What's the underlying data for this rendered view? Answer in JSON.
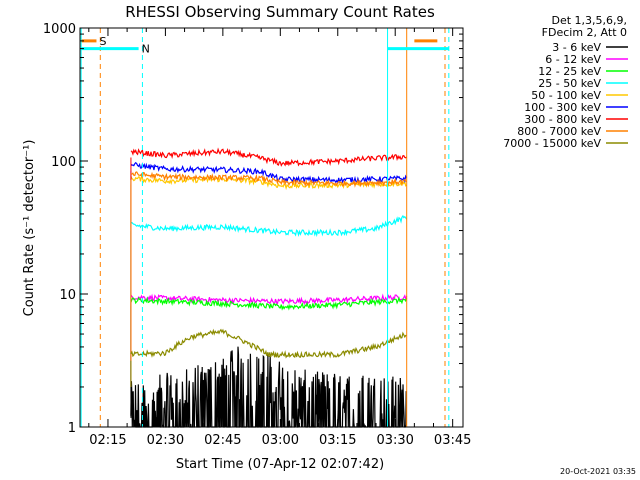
{
  "chart_data": {
    "type": "line",
    "title": "RHESSI Observing Summary Count Rates",
    "xlabel": "Start Time (07-Apr-12 02:07:42)",
    "ylabel": "Count Rate (s⁻¹ detector⁻¹)",
    "ylog": true,
    "ylim": [
      1,
      1000
    ],
    "xlim": [
      "02:07:42",
      "03:47:42"
    ],
    "x_tick_labels": [
      "02:15",
      "02:30",
      "02:45",
      "03:00",
      "03:15",
      "03:30",
      "03:45"
    ],
    "y_tick_labels": [
      "1",
      "10",
      "100",
      "1000"
    ],
    "legend_header": [
      "Det 1,3,5,6,9,",
      "FDecim 2, Att 0"
    ],
    "legend_position": "right, outside plot",
    "data_start": "02:21:00",
    "data_end": "03:33:00",
    "series": [
      {
        "name": "3 - 6 keV",
        "color": "#000000",
        "noisy": true,
        "points": [
          [
            "02:21",
            1.3
          ],
          [
            "02:35",
            1.6
          ],
          [
            "02:45",
            2.0
          ],
          [
            "02:50",
            2.5
          ],
          [
            "02:55",
            2.2
          ],
          [
            "03:05",
            1.6
          ],
          [
            "03:20",
            1.5
          ],
          [
            "03:33",
            1.4
          ]
        ]
      },
      {
        "name": "6 - 12 keV",
        "color": "#ff00ff",
        "points": [
          [
            "02:21",
            9.5
          ],
          [
            "02:45",
            9.0
          ],
          [
            "03:00",
            8.8
          ],
          [
            "03:15",
            9.0
          ],
          [
            "03:33",
            9.5
          ]
        ]
      },
      {
        "name": "12 - 25 keV",
        "color": "#00ff00",
        "points": [
          [
            "02:21",
            9.0
          ],
          [
            "02:45",
            8.5
          ],
          [
            "03:00",
            8.0
          ],
          [
            "03:15",
            8.3
          ],
          [
            "03:33",
            9.0
          ]
        ]
      },
      {
        "name": "25 - 50 keV",
        "color": "#00ffff",
        "points": [
          [
            "02:21",
            33
          ],
          [
            "02:30",
            31
          ],
          [
            "02:45",
            32
          ],
          [
            "02:55",
            30
          ],
          [
            "03:00",
            29
          ],
          [
            "03:15",
            29
          ],
          [
            "03:25",
            31
          ],
          [
            "03:33",
            38
          ]
        ]
      },
      {
        "name": "50 - 100 keV",
        "color": "#ffc800",
        "points": [
          [
            "02:21",
            74
          ],
          [
            "02:30",
            71
          ],
          [
            "02:45",
            73
          ],
          [
            "02:55",
            70
          ],
          [
            "03:00",
            65
          ],
          [
            "03:15",
            66
          ],
          [
            "03:25",
            67
          ],
          [
            "03:33",
            68
          ]
        ]
      },
      {
        "name": "100 - 300 keV",
        "color": "#0000ff",
        "points": [
          [
            "02:21",
            94
          ],
          [
            "02:30",
            87
          ],
          [
            "02:45",
            86
          ],
          [
            "02:55",
            83
          ],
          [
            "03:00",
            73
          ],
          [
            "03:15",
            72
          ],
          [
            "03:25",
            73
          ],
          [
            "03:33",
            74
          ]
        ]
      },
      {
        "name": "300 - 800 keV",
        "color": "#ff0000",
        "points": [
          [
            "02:21",
            118
          ],
          [
            "02:30",
            110
          ],
          [
            "02:45",
            118
          ],
          [
            "02:55",
            105
          ],
          [
            "03:00",
            96
          ],
          [
            "03:15",
            100
          ],
          [
            "03:25",
            105
          ],
          [
            "03:33",
            108
          ]
        ]
      },
      {
        "name": "800 - 7000 keV",
        "color": "#ff8000",
        "points": [
          [
            "02:21",
            80
          ],
          [
            "02:30",
            76
          ],
          [
            "02:45",
            75
          ],
          [
            "02:55",
            74
          ],
          [
            "03:00",
            69
          ],
          [
            "03:15",
            68
          ],
          [
            "03:25",
            69
          ],
          [
            "03:33",
            70
          ]
        ]
      },
      {
        "name": "7000 - 15000 keV",
        "color": "#8b8b00",
        "points": [
          [
            "02:21",
            3.5
          ],
          [
            "02:30",
            3.6
          ],
          [
            "02:37",
            4.8
          ],
          [
            "02:45",
            5.2
          ],
          [
            "02:52",
            4.2
          ],
          [
            "02:57",
            3.5
          ],
          [
            "03:15",
            3.5
          ],
          [
            "03:25",
            4.0
          ],
          [
            "03:33",
            5.0
          ]
        ]
      }
    ],
    "flags": [
      {
        "label": "S",
        "color": "#ff8000",
        "bars": [
          [
            "02:08",
            "02:12"
          ],
          [
            "03:35",
            "03:41"
          ]
        ],
        "level": 800,
        "markers": [
          {
            "time": "02:13",
            "style": "dashed"
          },
          {
            "time": "03:33",
            "style": "solid"
          },
          {
            "time": "03:43",
            "style": "dashed"
          }
        ]
      },
      {
        "label": "N",
        "color": "#00ffff",
        "bars": [
          [
            "02:08",
            "02:23"
          ],
          [
            "03:28",
            "03:44"
          ]
        ],
        "level": 700,
        "markers": [
          {
            "time": "02:08",
            "style": "solid"
          },
          {
            "time": "02:24",
            "style": "dashed"
          },
          {
            "time": "03:28",
            "style": "solid"
          },
          {
            "time": "03:44",
            "style": "dashed"
          }
        ]
      }
    ],
    "grid": false
  },
  "footer_stamp": "20-Oct-2021 03:35"
}
